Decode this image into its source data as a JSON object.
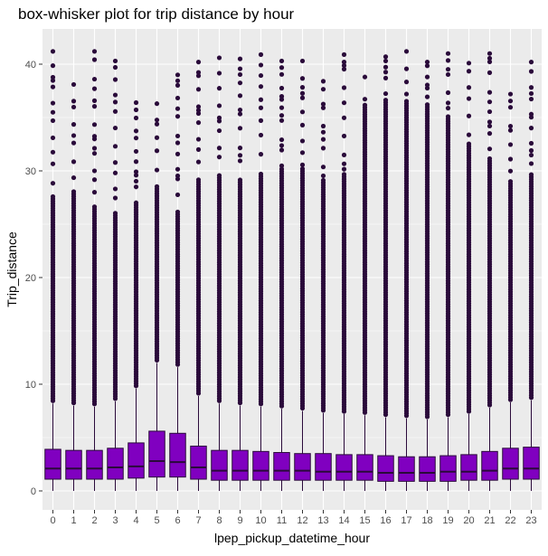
{
  "chart_data": {
    "type": "box",
    "title": "box-whisker plot for trip distance by hour",
    "xlabel": "lpep_pickup_datetime_hour",
    "ylabel": "Trip_distance",
    "ylim": [
      -2,
      43
    ],
    "yticks": [
      0,
      10,
      20,
      30,
      40
    ],
    "grid": true,
    "legend": "none",
    "colors": {
      "panel": "#ebebeb",
      "grid": "#ffffff",
      "box_fill": "#8000c0",
      "outline": "#2a0a3a",
      "outlier": "#2a0a3a"
    },
    "categories": [
      "0",
      "1",
      "2",
      "3",
      "4",
      "5",
      "6",
      "7",
      "8",
      "9",
      "10",
      "11",
      "12",
      "13",
      "14",
      "15",
      "16",
      "17",
      "18",
      "19",
      "20",
      "21",
      "22",
      "23"
    ],
    "boxes": [
      {
        "category": "0",
        "q1": 1.1,
        "median": 2.1,
        "q3": 3.9,
        "whisker_low": 0,
        "whisker_high": 8.2,
        "outlier_max": 41.2,
        "sparse_from": 27.5
      },
      {
        "category": "1",
        "q1": 1.1,
        "median": 2.1,
        "q3": 3.8,
        "whisker_low": 0,
        "whisker_high": 8.0,
        "outlier_max": 38.1,
        "sparse_from": 28.0
      },
      {
        "category": "2",
        "q1": 1.1,
        "median": 2.1,
        "q3": 3.8,
        "whisker_low": 0,
        "whisker_high": 7.9,
        "outlier_max": 41.2,
        "sparse_from": 26.5
      },
      {
        "category": "3",
        "q1": 1.1,
        "median": 2.2,
        "q3": 4.0,
        "whisker_low": 0,
        "whisker_high": 8.4,
        "outlier_max": 40.3,
        "sparse_from": 26.0
      },
      {
        "category": "4",
        "q1": 1.2,
        "median": 2.3,
        "q3": 4.5,
        "whisker_low": 0,
        "whisker_high": 9.6,
        "outlier_max": 36.4,
        "sparse_from": 27.0
      },
      {
        "category": "5",
        "q1": 1.3,
        "median": 2.8,
        "q3": 5.6,
        "whisker_low": 0,
        "whisker_high": 12.0,
        "outlier_max": 36.3,
        "sparse_from": 28.5
      },
      {
        "category": "6",
        "q1": 1.3,
        "median": 2.7,
        "q3": 5.4,
        "whisker_low": 0,
        "whisker_high": 11.6,
        "outlier_max": 39.0,
        "sparse_from": 26.0
      },
      {
        "category": "7",
        "q1": 1.1,
        "median": 2.2,
        "q3": 4.2,
        "whisker_low": 0,
        "whisker_high": 8.9,
        "outlier_max": 40.2,
        "sparse_from": 29.0
      },
      {
        "category": "8",
        "q1": 1.0,
        "median": 1.9,
        "q3": 3.8,
        "whisker_low": 0,
        "whisker_high": 8.2,
        "outlier_max": 40.6,
        "sparse_from": 29.5
      },
      {
        "category": "9",
        "q1": 1.0,
        "median": 1.9,
        "q3": 3.8,
        "whisker_low": 0,
        "whisker_high": 8.0,
        "outlier_max": 40.5,
        "sparse_from": 29.0
      },
      {
        "category": "10",
        "q1": 1.0,
        "median": 1.9,
        "q3": 3.7,
        "whisker_low": 0,
        "whisker_high": 7.9,
        "outlier_max": 40.9,
        "sparse_from": 29.5
      },
      {
        "category": "11",
        "q1": 1.0,
        "median": 1.9,
        "q3": 3.6,
        "whisker_low": 0,
        "whisker_high": 7.7,
        "outlier_max": 40.3,
        "sparse_from": 30.0
      },
      {
        "category": "12",
        "q1": 1.0,
        "median": 1.9,
        "q3": 3.5,
        "whisker_low": 0,
        "whisker_high": 7.5,
        "outlier_max": 40.3,
        "sparse_from": 30.0
      },
      {
        "category": "13",
        "q1": 1.0,
        "median": 1.8,
        "q3": 3.5,
        "whisker_low": 0,
        "whisker_high": 7.3,
        "outlier_max": 38.4,
        "sparse_from": 29.0
      },
      {
        "category": "14",
        "q1": 1.0,
        "median": 1.8,
        "q3": 3.4,
        "whisker_low": 0,
        "whisker_high": 7.2,
        "outlier_max": 40.9,
        "sparse_from": 29.5
      },
      {
        "category": "15",
        "q1": 1.0,
        "median": 1.8,
        "q3": 3.4,
        "whisker_low": 0,
        "whisker_high": 7.1,
        "outlier_max": 38.8,
        "sparse_from": 36.0
      },
      {
        "category": "16",
        "q1": 0.9,
        "median": 1.7,
        "q3": 3.3,
        "whisker_low": 0,
        "whisker_high": 6.9,
        "outlier_max": 40.7,
        "sparse_from": 36.5
      },
      {
        "category": "17",
        "q1": 0.9,
        "median": 1.7,
        "q3": 3.2,
        "whisker_low": 0,
        "whisker_high": 6.8,
        "outlier_max": 41.2,
        "sparse_from": 36.5
      },
      {
        "category": "18",
        "q1": 0.9,
        "median": 1.7,
        "q3": 3.2,
        "whisker_low": 0,
        "whisker_high": 6.7,
        "outlier_max": 40.2,
        "sparse_from": 36.0
      },
      {
        "category": "19",
        "q1": 0.9,
        "median": 1.8,
        "q3": 3.3,
        "whisker_low": 0,
        "whisker_high": 6.9,
        "outlier_max": 41.0,
        "sparse_from": 35.0
      },
      {
        "category": "20",
        "q1": 1.0,
        "median": 1.8,
        "q3": 3.4,
        "whisker_low": 0,
        "whisker_high": 7.2,
        "outlier_max": 40.1,
        "sparse_from": 32.5
      },
      {
        "category": "21",
        "q1": 1.0,
        "median": 1.9,
        "q3": 3.7,
        "whisker_low": 0,
        "whisker_high": 7.8,
        "outlier_max": 41.0,
        "sparse_from": 31.0
      },
      {
        "category": "22",
        "q1": 1.1,
        "median": 2.1,
        "q3": 4.0,
        "whisker_low": 0,
        "whisker_high": 8.3,
        "outlier_max": 37.2,
        "sparse_from": 29.0
      },
      {
        "category": "23",
        "q1": 1.1,
        "median": 2.1,
        "q3": 4.1,
        "whisker_low": 0,
        "whisker_high": 8.5,
        "outlier_max": 40.2,
        "sparse_from": 29.5
      }
    ]
  }
}
